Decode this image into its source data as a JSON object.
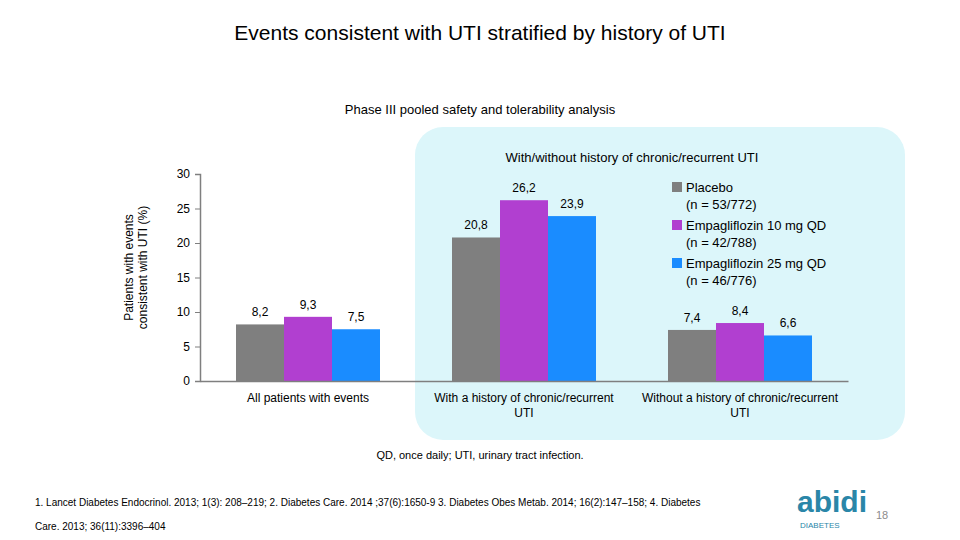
{
  "chart_data": {
    "type": "bar",
    "title": "Events consistent with UTI stratified by history of UTI",
    "subtitle": "Phase III pooled safety and tolerability analysis",
    "y_label": "Patients with events consistent with UTI (%)",
    "categories": [
      "All patients with events",
      "With a history of chronic/recurrent UTI",
      "Without a history of chronic/recurrent UTI"
    ],
    "series": [
      {
        "name": "Placebo (n = 53/772)",
        "color": "#7f7f7f",
        "values": [
          8.2,
          20.8,
          7.4
        ],
        "value_labels": [
          "8,2",
          "20,8",
          "7,4"
        ]
      },
      {
        "name": "Empagliflozin 10 mg QD (n = 42/788)",
        "color": "#b13fd0",
        "values": [
          9.3,
          26.2,
          8.4
        ],
        "value_labels": [
          "9,3",
          "26,2",
          "8,4"
        ]
      },
      {
        "name": "Empagliflozin 25 mg QD (n = 46/776)",
        "color": "#1a8cff",
        "values": [
          7.5,
          23.9,
          6.6
        ],
        "value_labels": [
          "7,5",
          "23,9",
          "6,6"
        ]
      }
    ],
    "ylim": [
      0,
      30
    ],
    "yticks": [
      0,
      5,
      10,
      15,
      20,
      25,
      30
    ],
    "grid": false,
    "legend": "upper right",
    "data_labels": true
  },
  "panel_title": "With/without history of chronic/recurrent UTI",
  "footnote": "QD, once daily; UTI, urinary tract infection.",
  "references": [
    "1. Lancet Diabetes Endocrinol. 2013; 1(3): 208–219; 2. Diabetes Care. 2014 ;37(6):1650-9 3. Diabetes Obes Metab. 2014; 16(2):147–158; 4. Diabetes",
    "Care. 2013; 36(11):3396–404"
  ],
  "logo": {
    "name": "abidi",
    "tagline": "DIABETES"
  },
  "page_number": "18"
}
